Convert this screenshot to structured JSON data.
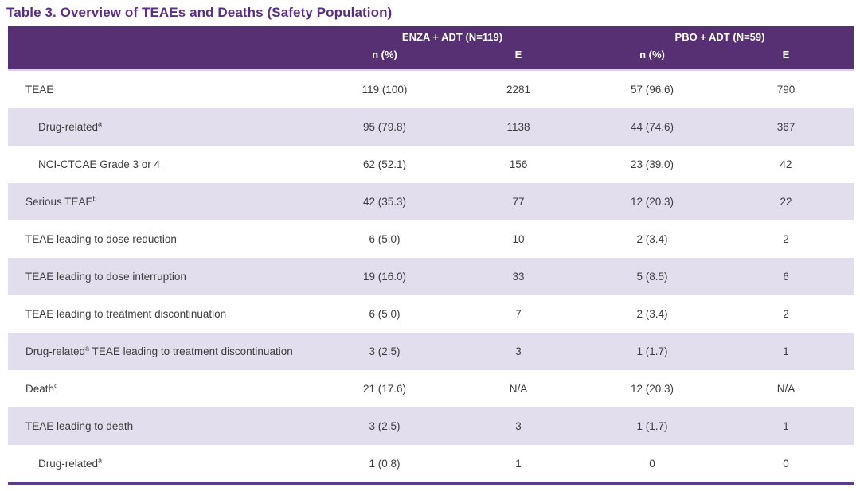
{
  "title": "Table 3. Overview of TEAEs and Deaths (Safety Population)",
  "colors": {
    "title_purple": "#5b2d86",
    "header_background": "#563073",
    "header_text": "#ffffff",
    "shaded_row": "#e3deed",
    "body_text": "#3d3d3d",
    "bottom_border": "#5e3a87"
  },
  "table": {
    "column_groups": [
      {
        "label": "ENZA + ADT (N=119)"
      },
      {
        "label": "PBO + ADT (N=59)"
      }
    ],
    "sub_headers": [
      "n (%)",
      "E",
      "n (%)",
      "E"
    ],
    "rows": [
      {
        "label": "TEAE",
        "indent": false,
        "shaded": false,
        "values": [
          "119 (100)",
          "2281",
          "57 (96.6)",
          "790"
        ]
      },
      {
        "label": "Drug-related",
        "sup": "a",
        "indent": true,
        "shaded": true,
        "values": [
          "95 (79.8)",
          "1138",
          "44 (74.6)",
          "367"
        ]
      },
      {
        "label": "NCI-CTCAE Grade 3 or 4",
        "indent": true,
        "shaded": false,
        "values": [
          "62 (52.1)",
          "156",
          "23 (39.0)",
          "42"
        ]
      },
      {
        "label": "Serious TEAE",
        "sup": "b",
        "indent": false,
        "shaded": true,
        "values": [
          "42 (35.3)",
          "77",
          "12 (20.3)",
          "22"
        ]
      },
      {
        "label": "TEAE leading to dose reduction",
        "indent": false,
        "shaded": false,
        "values": [
          "6 (5.0)",
          "10",
          "2 (3.4)",
          "2"
        ]
      },
      {
        "label": "TEAE leading to dose interruption",
        "indent": false,
        "shaded": true,
        "values": [
          "19 (16.0)",
          "33",
          "5 (8.5)",
          "6"
        ]
      },
      {
        "label": "TEAE leading to treatment discontinuation",
        "indent": false,
        "shaded": false,
        "values": [
          "6 (5.0)",
          "7",
          "2 (3.4)",
          "2"
        ]
      },
      {
        "label": "Drug-related",
        "sup": "a",
        "label_after": " TEAE leading to treatment discontinuation",
        "indent": false,
        "shaded": true,
        "values": [
          "3 (2.5)",
          "3",
          "1 (1.7)",
          "1"
        ]
      },
      {
        "label": "Death",
        "sup": "c",
        "indent": false,
        "shaded": false,
        "values": [
          "21 (17.6)",
          "N/A",
          "12 (20.3)",
          "N/A"
        ]
      },
      {
        "label": "TEAE leading to death",
        "indent": false,
        "shaded": true,
        "values": [
          "3 (2.5)",
          "3",
          "1 (1.7)",
          "1"
        ]
      },
      {
        "label": "Drug-related",
        "sup": "a",
        "indent": true,
        "shaded": false,
        "values": [
          "1 (0.8)",
          "1",
          "0",
          "0"
        ]
      }
    ]
  }
}
